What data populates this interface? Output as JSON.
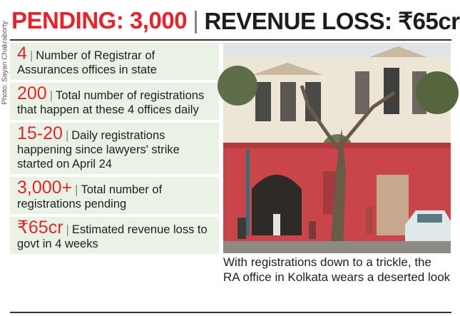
{
  "credit": "Photo: Sayan Chakraborty",
  "header": {
    "pending": "PENDING: 3,000",
    "separator": "|",
    "loss": "REVENUE LOSS: ₹65cr"
  },
  "stats": [
    {
      "number": "4",
      "sep": "|",
      "text": "Number of Registrar of Assurances offices in state"
    },
    {
      "number": "200",
      "sep": "|",
      "text": "Total number of registrations that happen at these 4 offices daily"
    },
    {
      "number": "15-20",
      "sep": "|",
      "text": "Daily registrations happening since lawyers' strike started on April 24"
    },
    {
      "number": "3,000+",
      "sep": "|",
      "text": "Total number of registrations pending"
    },
    {
      "number": "₹65cr",
      "sep": "|",
      "text": "Estimated revenue loss to govt in 4 weeks"
    }
  ],
  "caption": "With registrations down to a trickle, the RA office in Kolkata wears a deserted look",
  "colors": {
    "accent": "#e0262c",
    "panel": "#e9f2e4",
    "building": "#c9454a"
  }
}
